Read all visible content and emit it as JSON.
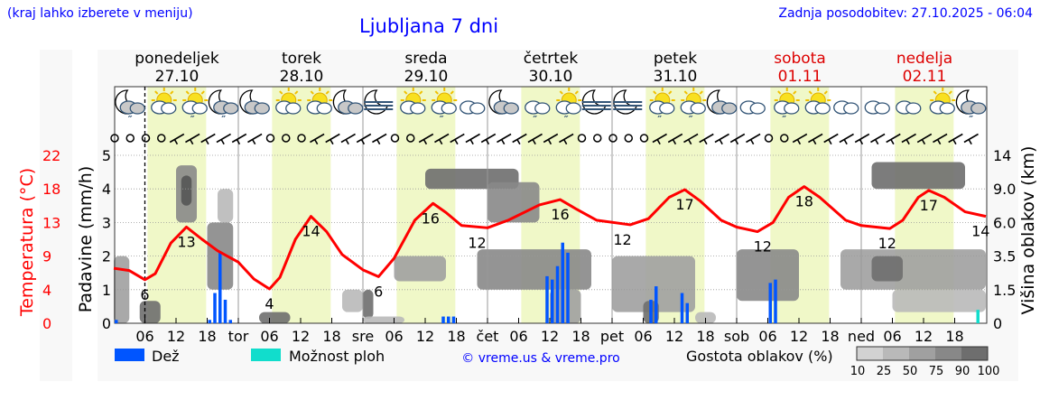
{
  "header": {
    "hint": "(kraj lahko izberete v meniju)",
    "title": "Ljubljana 7 dni",
    "updated": "Zadnja posodobitev: 27.10.2025 - 06:04"
  },
  "days": [
    {
      "name": "ponedeljek",
      "date": "27.10",
      "weekend": false
    },
    {
      "name": "torek",
      "date": "28.10",
      "weekend": false
    },
    {
      "name": "sreda",
      "date": "29.10",
      "weekend": false
    },
    {
      "name": "četrtek",
      "date": "30.10",
      "weekend": false
    },
    {
      "name": "petek",
      "date": "31.10",
      "weekend": false
    },
    {
      "name": "sobota",
      "date": "01.11",
      "weekend": true
    },
    {
      "name": "nedelja",
      "date": "02.11",
      "weekend": true
    }
  ],
  "legend": {
    "rain": "Dež",
    "showers": "Možnost ploh",
    "copyright": "© vreme.us & vreme.pro",
    "cloud_density": "Gostota oblakov (%)",
    "density_levels": [
      "10",
      "25",
      "50",
      "75",
      "90",
      "100"
    ]
  },
  "colors": {
    "rain": "#0055ff",
    "showers": "#11ddcc",
    "temperature": "#ff0000",
    "daylight": "#f0f8c8",
    "density": [
      "#d2d2d2",
      "#b9b9b9",
      "#a0a0a0",
      "#888888",
      "#6e6e6e",
      "#555555"
    ]
  },
  "chart_data": {
    "type": "meteogram",
    "x_ticks": [
      "06",
      "12",
      "18",
      "tor",
      "06",
      "12",
      "18",
      "sre",
      "06",
      "12",
      "18",
      "čet",
      "06",
      "12",
      "18",
      "pet",
      "06",
      "12",
      "18",
      "sob",
      "06",
      "12",
      "18",
      "ned",
      "06",
      "12",
      "18"
    ],
    "left_axis_precip": {
      "label": "Padavine (mm/h)",
      "ticks": [
        "0",
        "1",
        "2",
        "3",
        "4",
        "5"
      ],
      "range": [
        0,
        5
      ]
    },
    "left_axis_temp": {
      "label": "Temperatura (°C)",
      "ticks": [
        "0",
        "4",
        "9",
        "13",
        "18",
        "22"
      ],
      "range": [
        0,
        22
      ]
    },
    "right_axis_cloud": {
      "label": "Višina oblakov (km)",
      "ticks": [
        "0",
        "1.5",
        "3.5",
        "6.0",
        "9.0",
        "14"
      ]
    },
    "now_hour": 6,
    "daylight_hours": [
      6.5,
      17.8
    ],
    "temperature": [
      [
        0,
        7.2
      ],
      [
        3,
        6.9
      ],
      [
        6,
        5.7
      ],
      [
        8,
        6.5
      ],
      [
        11,
        10.5
      ],
      [
        14,
        12.6
      ],
      [
        17,
        11
      ],
      [
        20,
        9.5
      ],
      [
        24,
        8
      ],
      [
        27,
        5.8
      ],
      [
        30,
        4.5
      ],
      [
        32,
        6
      ],
      [
        35,
        11
      ],
      [
        38,
        14
      ],
      [
        41,
        12
      ],
      [
        44,
        9
      ],
      [
        48,
        7
      ],
      [
        51,
        6.1
      ],
      [
        54,
        8.5
      ],
      [
        58,
        13.5
      ],
      [
        61.5,
        15.7
      ],
      [
        64,
        14.5
      ],
      [
        67,
        12.8
      ],
      [
        72,
        12.5
      ],
      [
        76,
        13.5
      ],
      [
        82,
        15.5
      ],
      [
        86,
        16.2
      ],
      [
        89,
        15
      ],
      [
        93,
        13.5
      ],
      [
        99.5,
        12.9
      ],
      [
        103,
        13.7
      ],
      [
        107,
        16.5
      ],
      [
        110,
        17.5
      ],
      [
        113,
        16
      ],
      [
        117,
        13.5
      ],
      [
        120,
        12.6
      ],
      [
        124,
        12
      ],
      [
        127,
        13.2
      ],
      [
        130,
        16.5
      ],
      [
        133,
        17.9
      ],
      [
        136,
        16.5
      ],
      [
        141,
        13.5
      ],
      [
        144,
        12.8
      ],
      [
        149.5,
        12.4
      ],
      [
        152,
        13.5
      ],
      [
        155,
        16.5
      ],
      [
        157,
        17.4
      ],
      [
        160,
        16.5
      ],
      [
        164,
        14.6
      ],
      [
        168,
        14
      ]
    ],
    "temp_labels": [
      [
        6,
        "6"
      ],
      [
        14,
        "13"
      ],
      [
        30,
        "4"
      ],
      [
        38,
        "14"
      ],
      [
        51,
        "6"
      ],
      [
        61,
        "16"
      ],
      [
        70,
        "12"
      ],
      [
        86,
        "16"
      ],
      [
        98,
        "12"
      ],
      [
        110,
        "17"
      ],
      [
        125,
        "12"
      ],
      [
        133,
        "18"
      ],
      [
        149,
        "12"
      ],
      [
        157,
        "17"
      ],
      [
        167,
        "14"
      ]
    ],
    "rain": [
      [
        0,
        0.1
      ],
      [
        18,
        0.1
      ],
      [
        19,
        0.9
      ],
      [
        20,
        2.1
      ],
      [
        21,
        0.7
      ],
      [
        22,
        0.1
      ],
      [
        63,
        0.2
      ],
      [
        64,
        0.2
      ],
      [
        65,
        0.2
      ],
      [
        83,
        1.4
      ],
      [
        84,
        1.3
      ],
      [
        85,
        1.7
      ],
      [
        86,
        2.4
      ],
      [
        87,
        2.1
      ],
      [
        103,
        0.7
      ],
      [
        104,
        1.1
      ],
      [
        109,
        0.9
      ],
      [
        110,
        0.6
      ],
      [
        126,
        1.2
      ],
      [
        127,
        1.3
      ]
    ],
    "showers": [
      [
        166,
        0.4
      ]
    ],
    "clouds": [
      [
        0,
        3,
        0,
        3.5,
        50
      ],
      [
        5,
        9,
        0,
        1,
        90
      ],
      [
        12,
        16,
        6,
        12.5,
        75
      ],
      [
        13,
        15,
        7.5,
        11,
        100
      ],
      [
        18,
        23,
        1.5,
        6,
        75
      ],
      [
        20,
        23,
        6,
        9,
        25
      ],
      [
        28,
        34,
        0,
        0.5,
        90
      ],
      [
        44,
        48,
        0.5,
        1.5,
        25
      ],
      [
        48,
        50,
        0.2,
        1.5,
        90
      ],
      [
        48,
        56,
        0,
        0.3,
        25
      ],
      [
        54,
        64,
        2,
        3.5,
        50
      ],
      [
        60,
        78,
        9,
        12,
        90
      ],
      [
        70,
        92,
        1.5,
        4,
        75
      ],
      [
        72,
        82,
        6,
        10,
        75
      ],
      [
        84,
        90,
        0,
        1.5,
        50
      ],
      [
        96,
        112,
        0.5,
        3.5,
        50
      ],
      [
        102,
        105,
        0,
        1,
        90
      ],
      [
        112,
        116,
        0,
        0.5,
        25
      ],
      [
        120,
        132,
        1,
        4,
        75
      ],
      [
        140,
        168,
        1.5,
        4,
        50
      ],
      [
        146,
        152,
        2,
        3.5,
        90
      ],
      [
        146,
        164,
        9,
        13,
        90
      ],
      [
        150,
        168,
        0.5,
        1.5,
        25
      ]
    ],
    "icons": [
      "night-cloud-rain",
      "sun-cloud",
      "sun-cloud-rain",
      "night-cloud-rain",
      "night-cloud",
      "sun-cloud",
      "sun-cloud",
      "night-cloud",
      "night-fog",
      "sun-cloud",
      "sun-cloud-rain",
      "cloudy",
      "night-cloud",
      "cloud-rain",
      "sun-cloud-rain",
      "night-fog",
      "night-fog",
      "sun-cloud-rain",
      "sun-cloud-rain",
      "night-cloud",
      "cloudy",
      "sun-cloud-rain",
      "sun-cloud",
      "cloudy",
      "cloudy",
      "cloudy",
      "sun-cloud",
      "night-cloud-rain"
    ],
    "wind": [
      "calm",
      "calm",
      "calm",
      "calm",
      "barb",
      "barb",
      "barb",
      "barb",
      "barb",
      "barb",
      "calm",
      "calm",
      "calm",
      "barb",
      "barb",
      "barb",
      "barb",
      "barb",
      "calm",
      "calm",
      "barb",
      "barb",
      "barb",
      "barb",
      "barb",
      "barb",
      "barb",
      "barb",
      "barb",
      "barb",
      "calm",
      "calm",
      "calm",
      "calm",
      "calm",
      "barb",
      "barb",
      "barb",
      "barb",
      "barb",
      "barb",
      "barb",
      "calm",
      "calm",
      "barb",
      "barb",
      "barb",
      "barb",
      "barb",
      "barb",
      "barb",
      "barb",
      "barb",
      "barb",
      "barb",
      "barb"
    ]
  }
}
